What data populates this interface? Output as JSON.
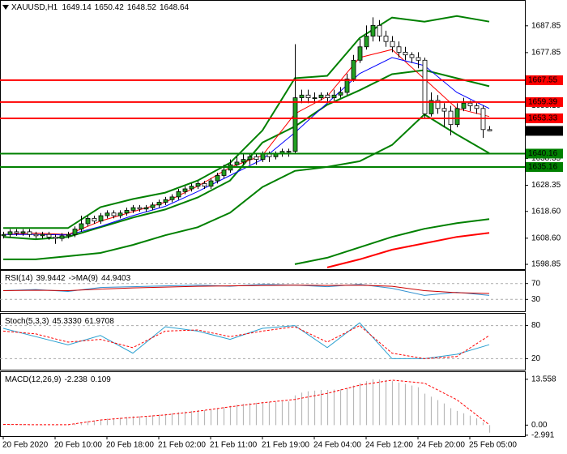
{
  "chart_data": [
    {
      "type": "candlestick",
      "title": "XAUUSD,H1",
      "categories": [
        "20 Feb 2020",
        null,
        null,
        null,
        null,
        null,
        null,
        null,
        "20 Feb 10:00",
        null,
        null,
        null,
        null,
        null,
        null,
        null,
        "20 Feb 18:00",
        null,
        null,
        null,
        null,
        null,
        null,
        null,
        "21 Feb 02:00",
        null,
        null,
        null,
        null,
        null,
        null,
        null,
        "21 Feb 11:00",
        null,
        null,
        null,
        null,
        null,
        null,
        null,
        "21 Feb 19:00",
        null,
        null,
        null,
        null,
        null,
        null,
        null,
        "24 Feb 04:00",
        null,
        null,
        null,
        null,
        null,
        null,
        null,
        "24 Feb 12:00",
        null,
        null,
        null,
        null,
        null,
        null,
        null,
        "24 Feb 20:00",
        null,
        null,
        null,
        null,
        null,
        null,
        null,
        "25 Feb 05:00",
        null,
        null,
        null
      ],
      "ohlc": [
        [
          1609.5,
          1611,
          1608.5,
          1610
        ],
        [
          1610,
          1612,
          1609,
          1611
        ],
        [
          1611,
          1612,
          1609.5,
          1610.5
        ],
        [
          1610.5,
          1612,
          1609.5,
          1611
        ],
        [
          1611,
          1612,
          1609,
          1610
        ],
        [
          1610,
          1611,
          1608.5,
          1609.5
        ],
        [
          1609.5,
          1611,
          1608.5,
          1610
        ],
        [
          1610,
          1611,
          1608,
          1609
        ],
        [
          1609,
          1610,
          1606.5,
          1608.5
        ],
        [
          1608.5,
          1610.5,
          1607.5,
          1609.5
        ],
        [
          1609.5,
          1611,
          1608.5,
          1610
        ],
        [
          1610,
          1613,
          1609,
          1612
        ],
        [
          1612,
          1617,
          1611,
          1614
        ],
        [
          1614,
          1617,
          1613,
          1616
        ],
        [
          1616,
          1617,
          1614,
          1615
        ],
        [
          1615,
          1618,
          1614,
          1617
        ],
        [
          1617,
          1619,
          1616,
          1618
        ],
        [
          1618,
          1619,
          1616,
          1617
        ],
        [
          1617,
          1619,
          1616,
          1618
        ],
        [
          1618,
          1620,
          1617,
          1619
        ],
        [
          1619,
          1621,
          1618,
          1620
        ],
        [
          1620,
          1621,
          1618.5,
          1619.5
        ],
        [
          1619.5,
          1621,
          1618.5,
          1620
        ],
        [
          1620,
          1622,
          1619,
          1621
        ],
        [
          1621,
          1623,
          1620,
          1622
        ],
        [
          1622,
          1624,
          1621,
          1623
        ],
        [
          1623,
          1625,
          1622,
          1624
        ],
        [
          1624,
          1627,
          1623,
          1626
        ],
        [
          1626,
          1628,
          1625,
          1627
        ],
        [
          1627,
          1629,
          1626,
          1628
        ],
        [
          1628,
          1630,
          1627,
          1629
        ],
        [
          1629,
          1630,
          1627,
          1628
        ],
        [
          1628,
          1631,
          1627,
          1630
        ],
        [
          1630,
          1633,
          1629,
          1632
        ],
        [
          1632,
          1636,
          1631,
          1634
        ],
        [
          1634,
          1638,
          1633,
          1636
        ],
        [
          1636,
          1639,
          1635,
          1637
        ],
        [
          1637,
          1640,
          1636,
          1638
        ],
        [
          1638,
          1640,
          1636,
          1639
        ],
        [
          1639,
          1640,
          1636,
          1638
        ],
        [
          1638,
          1641,
          1637,
          1640
        ],
        [
          1640,
          1641,
          1637,
          1639
        ],
        [
          1639,
          1641,
          1638,
          1640
        ],
        [
          1640,
          1642,
          1639,
          1641
        ],
        [
          1641,
          1642,
          1639,
          1641
        ],
        [
          1641,
          1681,
          1640,
          1661
        ],
        [
          1661,
          1664,
          1659,
          1662
        ],
        [
          1662,
          1664,
          1659,
          1661
        ],
        [
          1661,
          1663,
          1659,
          1661
        ],
        [
          1661,
          1663,
          1660,
          1662
        ],
        [
          1662,
          1663,
          1659,
          1661
        ],
        [
          1661,
          1664,
          1660,
          1662
        ],
        [
          1662,
          1665,
          1661,
          1663
        ],
        [
          1663,
          1670,
          1662,
          1668
        ],
        [
          1668,
          1677,
          1667,
          1675
        ],
        [
          1675,
          1683,
          1674,
          1680
        ],
        [
          1680,
          1688,
          1679,
          1684
        ],
        [
          1684,
          1691,
          1682,
          1688
        ],
        [
          1688,
          1690,
          1682,
          1684
        ],
        [
          1684,
          1686,
          1680,
          1682
        ],
        [
          1682,
          1684,
          1678,
          1680
        ],
        [
          1680,
          1682,
          1676,
          1678
        ],
        [
          1678,
          1680,
          1675,
          1677
        ],
        [
          1677,
          1678,
          1674,
          1676
        ],
        [
          1676,
          1678,
          1672,
          1675
        ],
        [
          1675,
          1676,
          1653,
          1655
        ],
        [
          1655,
          1663,
          1654,
          1660
        ],
        [
          1660,
          1662,
          1655,
          1657
        ],
        [
          1657,
          1659,
          1650,
          1656
        ],
        [
          1656,
          1658,
          1647,
          1651
        ],
        [
          1651,
          1659,
          1650,
          1657
        ],
        [
          1657,
          1661,
          1656,
          1659
        ],
        [
          1659,
          1660,
          1656,
          1658
        ],
        [
          1658,
          1659,
          1655,
          1657
        ],
        [
          1657,
          1658,
          1646,
          1649.14
        ],
        [
          1649.14,
          1650.42,
          1648.52,
          1648.64
        ]
      ],
      "up_color": "#22a022",
      "down_color": "#ffffff",
      "ylim": [
        1597.05,
        1696.87
      ],
      "yticks": [
        1598.85,
        {
          "value": 1608.6,
          "label": "1608.60"
        },
        {
          "value": 1618.6,
          "label": "1618.60"
        },
        1628.35,
        1638.35,
        {
          "value": 1658.1,
          "label": "1658.10"
        },
        1677.85,
        1687.85
      ],
      "lines": [
        {
          "color": "#008000",
          "bold": true,
          "x": [
            0,
            5,
            10,
            15,
            20,
            25,
            30,
            35,
            40,
            45,
            50,
            55,
            60,
            65,
            70,
            75
          ],
          "values": [
            1612.4,
            1612.4,
            1612.4,
            1620.2,
            1623.2,
            1625.6,
            1630.1,
            1636.7,
            1648.8,
            1668.3,
            1669.2,
            1683.3,
            1690.9,
            1689.4,
            1691.5,
            1689.4
          ]
        },
        {
          "color": "#008000",
          "bold": true,
          "x": [
            0,
            5,
            10,
            15,
            20,
            25,
            30,
            35,
            40,
            45,
            50,
            55,
            60,
            65,
            70,
            75
          ],
          "values": [
            1609.1,
            1608.2,
            1609.1,
            1612.7,
            1616.3,
            1619.3,
            1623.8,
            1630.1,
            1644.3,
            1650.3,
            1658.4,
            1663.8,
            1669.8,
            1671.3,
            1668.3,
            1665.3
          ]
        },
        {
          "color": "#008000",
          "bold": true,
          "x": [
            0,
            5,
            10,
            15,
            20,
            25,
            30,
            35,
            40,
            45,
            50,
            55,
            60,
            65,
            70,
            75
          ],
          "values": [
            1600.7,
            1600.7,
            1601.9,
            1603.1,
            1606.1,
            1609.7,
            1612.7,
            1618.1,
            1627.7,
            1633.7,
            1635.2,
            1637.3,
            1643.4,
            1654.8,
            1647.3,
            1640.3
          ]
        },
        {
          "color": "#ff0000",
          "x": [
            0,
            5,
            10,
            15,
            20,
            25,
            30,
            35,
            40,
            45,
            50,
            55,
            60,
            65,
            70,
            75
          ],
          "values": [
            1610,
            1610.5,
            1610,
            1615,
            1618.5,
            1622,
            1628,
            1635,
            1639.5,
            1655,
            1661.5,
            1676,
            1679,
            1668,
            1657,
            1654
          ]
        },
        {
          "color": "#0000ff",
          "x": [
            0,
            5,
            10,
            15,
            20,
            25,
            30,
            35,
            40,
            45,
            50,
            55,
            60,
            65,
            70,
            75
          ],
          "values": [
            1610,
            1610,
            1609.8,
            1613,
            1617,
            1620.5,
            1626,
            1632,
            1638,
            1648,
            1659,
            1670,
            1676,
            1673,
            1663,
            1657
          ]
        },
        {
          "color": "#008000",
          "bold": true,
          "x": [
            0,
            5,
            10,
            15,
            20,
            25,
            30,
            35,
            40,
            45,
            50,
            55,
            60,
            65,
            70,
            75
          ],
          "values": [
            null,
            null,
            null,
            null,
            null,
            null,
            null,
            null,
            null,
            1598.9,
            1601.3,
            1605.2,
            1609.1,
            1612.1,
            1614.2,
            1615.7
          ]
        },
        {
          "color": "#ff0000",
          "bold": true,
          "x": [
            0,
            5,
            10,
            15,
            20,
            25,
            30,
            35,
            40,
            45,
            50,
            55,
            60,
            65,
            70,
            75
          ],
          "values": [
            null,
            null,
            null,
            null,
            null,
            null,
            null,
            null,
            null,
            null,
            1597.7,
            1600.7,
            1604.3,
            1606.7,
            1609.1,
            1610.6
          ]
        }
      ],
      "levels": [
        {
          "value": 1667.55,
          "color": "#ff0000"
        },
        {
          "value": 1659.39,
          "color": "#ff0000"
        },
        {
          "value": 1653.33,
          "color": "#ff0000"
        },
        {
          "value": 1640.16,
          "color": "#008000"
        },
        {
          "value": 1635.16,
          "color": "#008000"
        }
      ]
    },
    {
      "type": "line",
      "ylim": [
        0,
        100
      ],
      "yticks": [
        30,
        70
      ],
      "grid": true,
      "series": [
        {
          "name": "RSI(14)",
          "color": "#2f8fd0",
          "x": [
            0,
            5,
            10,
            15,
            20,
            25,
            30,
            35,
            40,
            45,
            50,
            55,
            60,
            65,
            70,
            75
          ],
          "values": [
            52,
            55,
            50,
            60,
            62,
            64,
            66,
            63,
            68,
            66,
            62,
            68,
            58,
            40,
            48,
            39.9442
          ]
        },
        {
          "name": "->MA(9)",
          "color": "#cc0000",
          "x": [
            0,
            5,
            10,
            15,
            20,
            25,
            30,
            35,
            40,
            45,
            50,
            55,
            60,
            65,
            70,
            75
          ],
          "values": [
            52,
            53,
            52,
            56,
            59,
            61,
            63,
            64,
            65,
            66,
            65,
            66,
            63,
            52,
            47,
            44.9403
          ]
        }
      ]
    },
    {
      "type": "line",
      "ylim": [
        0,
        100
      ],
      "yticks": [
        20,
        80
      ],
      "grid": true,
      "series": [
        {
          "name": "Stoch(5,3,3)",
          "color": "#2aa0d0",
          "x": [
            0,
            5,
            10,
            15,
            20,
            25,
            30,
            35,
            40,
            45,
            50,
            55,
            60,
            65,
            70,
            75
          ],
          "values": [
            75,
            60,
            45,
            62,
            30,
            78,
            70,
            55,
            75,
            80,
            40,
            85,
            20,
            20,
            28,
            45.333
          ],
          "value_labels": [
            null,
            null,
            null,
            null,
            null,
            null,
            null,
            null,
            null,
            null,
            null,
            null,
            null,
            null,
            null,
            "45.3330"
          ]
        },
        {
          "color": "#ff0000",
          "dash": true,
          "x": [
            0,
            5,
            10,
            15,
            20,
            25,
            30,
            35,
            40,
            45,
            50,
            55,
            60,
            65,
            70,
            75
          ],
          "values": [
            70,
            65,
            50,
            55,
            40,
            70,
            72,
            60,
            70,
            78,
            50,
            80,
            30,
            20,
            24,
            61.9708
          ]
        }
      ]
    },
    {
      "type": "bar",
      "ylim": [
        -3.27,
        15.43
      ],
      "yticks": [
        13.558,
        {
          "value": 0,
          "label": "0.00"
        },
        -2.991
      ],
      "series": [
        {
          "name": "MACD(12,26,9)",
          "color": "#b8b8b8",
          "values": [
            0.2,
            0.3,
            0.3,
            0.2,
            0.2,
            0.1,
            0.1,
            0.0,
            -0.1,
            0.0,
            0.1,
            0.4,
            0.8,
            1.2,
            1.3,
            1.6,
            1.9,
            2.0,
            2.2,
            2.4,
            2.6,
            2.6,
            2.7,
            2.9,
            3.1,
            3.3,
            3.5,
            3.8,
            4.0,
            4.2,
            4.4,
            4.4,
            4.6,
            4.9,
            5.3,
            5.7,
            6.0,
            6.3,
            6.5,
            6.6,
            6.8,
            6.8,
            6.9,
            7.0,
            7.0,
            8.8,
            9.6,
            10.0,
            10.2,
            10.4,
            10.4,
            10.5,
            10.6,
            11.0,
            11.7,
            12.4,
            13.0,
            13.558,
            13.5,
            13.3,
            13.0,
            12.6,
            12.2,
            11.7,
            11.2,
            9.3,
            8.4,
            7.4,
            6.4,
            5.0,
            4.2,
            3.5,
            2.8,
            2.0,
            0.8,
            -2.238
          ]
        },
        {
          "type": "line",
          "color": "#ff0000",
          "dash": true,
          "x": [
            0,
            5,
            10,
            15,
            20,
            25,
            30,
            35,
            40,
            45,
            50,
            55,
            60,
            65,
            70,
            75
          ],
          "values": [
            0.2,
            0.1,
            0.1,
            1.5,
            2.3,
            3.0,
            4.1,
            5.4,
            6.6,
            7.6,
            9.4,
            11.8,
            13.3,
            12.4,
            7.5,
            0.109
          ]
        }
      ]
    }
  ]
}
